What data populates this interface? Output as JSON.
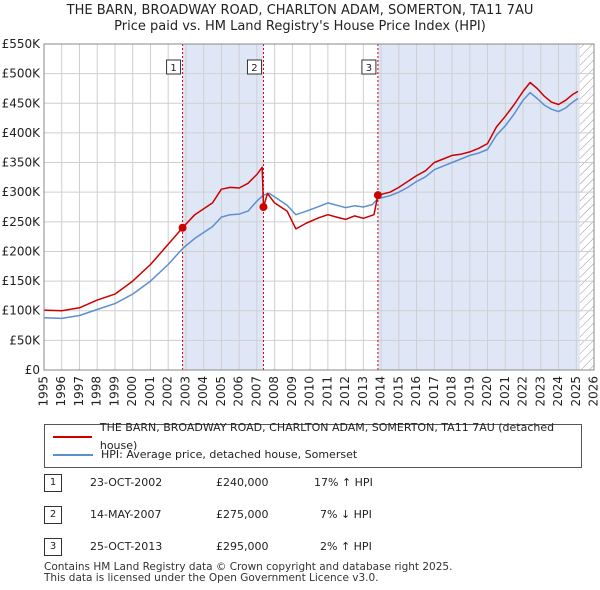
{
  "header": {
    "title_line1": "THE BARN, BROADWAY ROAD, CHARLTON ADAM, SOMERTON, TA11 7AU",
    "title_line2": "Price paid vs. HM Land Registry's House Price Index (HPI)"
  },
  "colors": {
    "red": "#cc0000",
    "blue": "#5b8fd0",
    "shade": "#dfe7f7",
    "grid": "#cfcfcf",
    "vline": "#cc0000"
  },
  "chart_data": {
    "type": "line",
    "x_range": [
      1995,
      2026
    ],
    "ylim": [
      0,
      550000
    ],
    "y_ticks": [
      0,
      50000,
      100000,
      150000,
      200000,
      250000,
      300000,
      350000,
      400000,
      450000,
      500000,
      550000
    ],
    "y_tick_labels": [
      "£0",
      "£50K",
      "£100K",
      "£150K",
      "£200K",
      "£250K",
      "£300K",
      "£350K",
      "£400K",
      "£450K",
      "£500K",
      "£550K"
    ],
    "x_tick_labels": [
      "1995",
      "1996",
      "1997",
      "1998",
      "1999",
      "2000",
      "2001",
      "2002",
      "2003",
      "2004",
      "2005",
      "2006",
      "2007",
      "2008",
      "2009",
      "2010",
      "2011",
      "2012",
      "2013",
      "2014",
      "2015",
      "2016",
      "2017",
      "2018",
      "2019",
      "2020",
      "2021",
      "2022",
      "2023",
      "2024",
      "2025",
      "2026"
    ],
    "shaded_regions": [
      [
        2002.81,
        2007.37
      ],
      [
        2013.82,
        2025.2
      ]
    ],
    "hatched_from": 2025.2,
    "series": [
      {
        "name": "THE BARN, BROADWAY ROAD, CHARLTON ADAM, SOMERTON, TA11 7AU (detached house)",
        "color": "#cc0000",
        "points": [
          [
            1995.0,
            101000
          ],
          [
            1996.0,
            100000
          ],
          [
            1997.0,
            105000
          ],
          [
            1998.0,
            118000
          ],
          [
            1999.0,
            128000
          ],
          [
            2000.0,
            150000
          ],
          [
            2001.0,
            178000
          ],
          [
            2002.0,
            212000
          ],
          [
            2002.81,
            240000
          ],
          [
            2003.5,
            262000
          ],
          [
            2004.5,
            282000
          ],
          [
            2005.0,
            305000
          ],
          [
            2005.5,
            308000
          ],
          [
            2006.0,
            307000
          ],
          [
            2006.5,
            315000
          ],
          [
            2007.0,
            330000
          ],
          [
            2007.3,
            342000
          ],
          [
            2007.37,
            275000
          ],
          [
            2007.6,
            298000
          ],
          [
            2008.0,
            282000
          ],
          [
            2008.7,
            268000
          ],
          [
            2009.2,
            238000
          ],
          [
            2009.8,
            248000
          ],
          [
            2010.5,
            257000
          ],
          [
            2011.0,
            262000
          ],
          [
            2011.5,
            258000
          ],
          [
            2012.0,
            254000
          ],
          [
            2012.5,
            260000
          ],
          [
            2013.0,
            256000
          ],
          [
            2013.6,
            262000
          ],
          [
            2013.82,
            295000
          ],
          [
            2014.5,
            300000
          ],
          [
            2015.0,
            308000
          ],
          [
            2015.5,
            318000
          ],
          [
            2016.0,
            328000
          ],
          [
            2016.5,
            336000
          ],
          [
            2017.0,
            350000
          ],
          [
            2017.5,
            356000
          ],
          [
            2018.0,
            362000
          ],
          [
            2018.5,
            364000
          ],
          [
            2019.0,
            368000
          ],
          [
            2019.5,
            374000
          ],
          [
            2020.0,
            382000
          ],
          [
            2020.5,
            410000
          ],
          [
            2021.0,
            428000
          ],
          [
            2021.5,
            448000
          ],
          [
            2022.0,
            470000
          ],
          [
            2022.4,
            485000
          ],
          [
            2022.8,
            475000
          ],
          [
            2023.2,
            462000
          ],
          [
            2023.6,
            452000
          ],
          [
            2024.0,
            448000
          ],
          [
            2024.4,
            455000
          ],
          [
            2024.8,
            465000
          ],
          [
            2025.1,
            470000
          ]
        ]
      },
      {
        "name": "HPI: Average price, detached house, Somerset",
        "color": "#5b8fd0",
        "points": [
          [
            1995.0,
            88000
          ],
          [
            1996.0,
            87000
          ],
          [
            1997.0,
            92000
          ],
          [
            1998.0,
            102000
          ],
          [
            1999.0,
            112000
          ],
          [
            2000.0,
            128000
          ],
          [
            2001.0,
            150000
          ],
          [
            2002.0,
            178000
          ],
          [
            2002.81,
            205000
          ],
          [
            2003.5,
            222000
          ],
          [
            2004.5,
            242000
          ],
          [
            2005.0,
            258000
          ],
          [
            2005.5,
            262000
          ],
          [
            2006.0,
            263000
          ],
          [
            2006.5,
            268000
          ],
          [
            2007.0,
            285000
          ],
          [
            2007.37,
            295000
          ],
          [
            2007.7,
            298000
          ],
          [
            2008.0,
            292000
          ],
          [
            2008.7,
            278000
          ],
          [
            2009.2,
            262000
          ],
          [
            2009.8,
            268000
          ],
          [
            2010.5,
            276000
          ],
          [
            2011.0,
            282000
          ],
          [
            2011.5,
            278000
          ],
          [
            2012.0,
            274000
          ],
          [
            2012.5,
            277000
          ],
          [
            2013.0,
            275000
          ],
          [
            2013.5,
            279000
          ],
          [
            2013.82,
            289000
          ],
          [
            2014.5,
            294000
          ],
          [
            2015.0,
            300000
          ],
          [
            2015.5,
            308000
          ],
          [
            2016.0,
            318000
          ],
          [
            2016.5,
            326000
          ],
          [
            2017.0,
            338000
          ],
          [
            2017.5,
            344000
          ],
          [
            2018.0,
            350000
          ],
          [
            2018.5,
            356000
          ],
          [
            2019.0,
            362000
          ],
          [
            2019.5,
            366000
          ],
          [
            2020.0,
            372000
          ],
          [
            2020.5,
            396000
          ],
          [
            2021.0,
            412000
          ],
          [
            2021.5,
            432000
          ],
          [
            2022.0,
            455000
          ],
          [
            2022.4,
            468000
          ],
          [
            2022.8,
            458000
          ],
          [
            2023.2,
            447000
          ],
          [
            2023.6,
            440000
          ],
          [
            2024.0,
            436000
          ],
          [
            2024.4,
            442000
          ],
          [
            2024.8,
            452000
          ],
          [
            2025.1,
            458000
          ]
        ]
      }
    ],
    "markers": [
      {
        "label": "1",
        "x": 2002.81,
        "value": 240000
      },
      {
        "label": "2",
        "x": 2007.37,
        "value": 275000
      },
      {
        "label": "3",
        "x": 2013.82,
        "value": 295000
      }
    ]
  },
  "legend": {
    "red_label": "THE BARN, BROADWAY ROAD, CHARLTON ADAM, SOMERTON, TA11 7AU (detached house)",
    "blue_label": "HPI: Average price, detached house, Somerset"
  },
  "transactions": [
    {
      "num": "1",
      "date": "23-OCT-2002",
      "price": "£240,000",
      "hpi": "17% ↑ HPI"
    },
    {
      "num": "2",
      "date": "14-MAY-2007",
      "price": "£275,000",
      "hpi": "7% ↓ HPI"
    },
    {
      "num": "3",
      "date": "25-OCT-2013",
      "price": "£295,000",
      "hpi": "2% ↑ HPI"
    }
  ],
  "footer": {
    "line1": "Contains HM Land Registry data © Crown copyright and database right 2025.",
    "line2": "This data is licensed under the Open Government Licence v3.0."
  }
}
